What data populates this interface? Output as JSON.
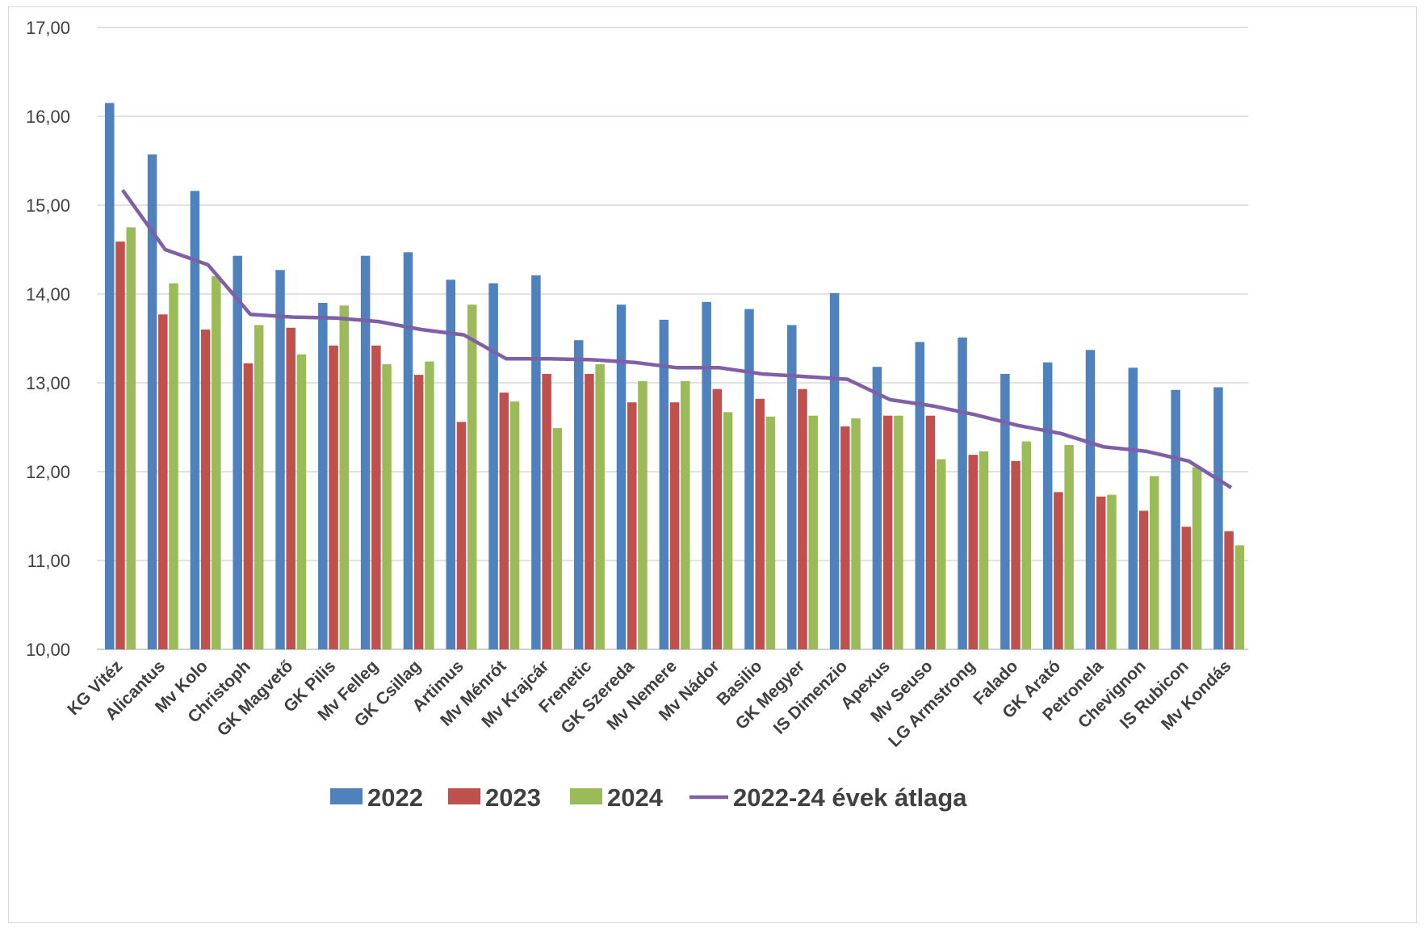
{
  "chart_data": {
    "type": "bar",
    "title": "",
    "xlabel": "",
    "ylabel": "",
    "ylim": [
      10,
      17
    ],
    "y_ticks": [
      "10,00",
      "11,00",
      "12,00",
      "13,00",
      "14,00",
      "15,00",
      "16,00",
      "17,00"
    ],
    "grid": true,
    "legend_position": "bottom",
    "categories": [
      "KG Vitéz",
      "Alicantus",
      "Mv Kolo",
      "Christoph",
      "GK Magvető",
      "GK Pilis",
      "Mv Felleg",
      "GK Csillag",
      "Artimus",
      "Mv Ménrót",
      "Mv Krajcár",
      "Frenetic",
      "GK Szereda",
      "Mv Nemere",
      "Mv Nádor",
      "Basilio",
      "GK Megyer",
      "IS Dimenzio",
      "Apexus",
      "Mv Seuso",
      "LG Armstrong",
      "Falado",
      "GK Arató",
      "Petronela",
      "Chevignon",
      "IS Rubicon",
      "Mv Kondás"
    ],
    "series": [
      {
        "name": "2022",
        "type": "bar",
        "color": "#4f81bd",
        "values": [
          16.15,
          15.57,
          15.16,
          14.43,
          14.27,
          13.9,
          14.43,
          14.47,
          14.16,
          14.12,
          14.21,
          13.48,
          13.88,
          13.71,
          13.91,
          13.83,
          13.65,
          14.01,
          13.18,
          13.46,
          13.51,
          13.1,
          13.23,
          13.37,
          13.17,
          12.92,
          12.95
        ]
      },
      {
        "name": "2023",
        "type": "bar",
        "color": "#c0504d",
        "values": [
          14.59,
          13.77,
          13.6,
          13.22,
          13.62,
          13.42,
          13.42,
          13.09,
          12.56,
          12.89,
          13.1,
          13.1,
          12.78,
          12.78,
          12.93,
          12.82,
          12.93,
          12.51,
          12.63,
          12.63,
          12.19,
          12.12,
          11.77,
          11.72,
          11.56,
          11.38,
          11.33
        ]
      },
      {
        "name": "2024",
        "type": "bar",
        "color": "#9bbb59",
        "values": [
          14.75,
          14.12,
          14.2,
          13.65,
          13.32,
          13.87,
          13.21,
          13.24,
          13.88,
          12.79,
          12.49,
          13.21,
          13.02,
          13.02,
          12.67,
          12.62,
          12.63,
          12.6,
          12.63,
          12.14,
          12.23,
          12.34,
          12.3,
          11.74,
          11.95,
          12.05,
          11.17
        ]
      },
      {
        "name": "2022-24 évek átlaga",
        "type": "line",
        "color": "#7f5fa8",
        "values": [
          15.17,
          14.5,
          14.33,
          13.77,
          13.74,
          13.73,
          13.69,
          13.6,
          13.54,
          13.27,
          13.27,
          13.26,
          13.23,
          13.17,
          13.17,
          13.1,
          13.07,
          13.04,
          12.81,
          12.74,
          12.64,
          12.52,
          12.43,
          12.28,
          12.23,
          12.12,
          11.82
        ]
      }
    ]
  }
}
